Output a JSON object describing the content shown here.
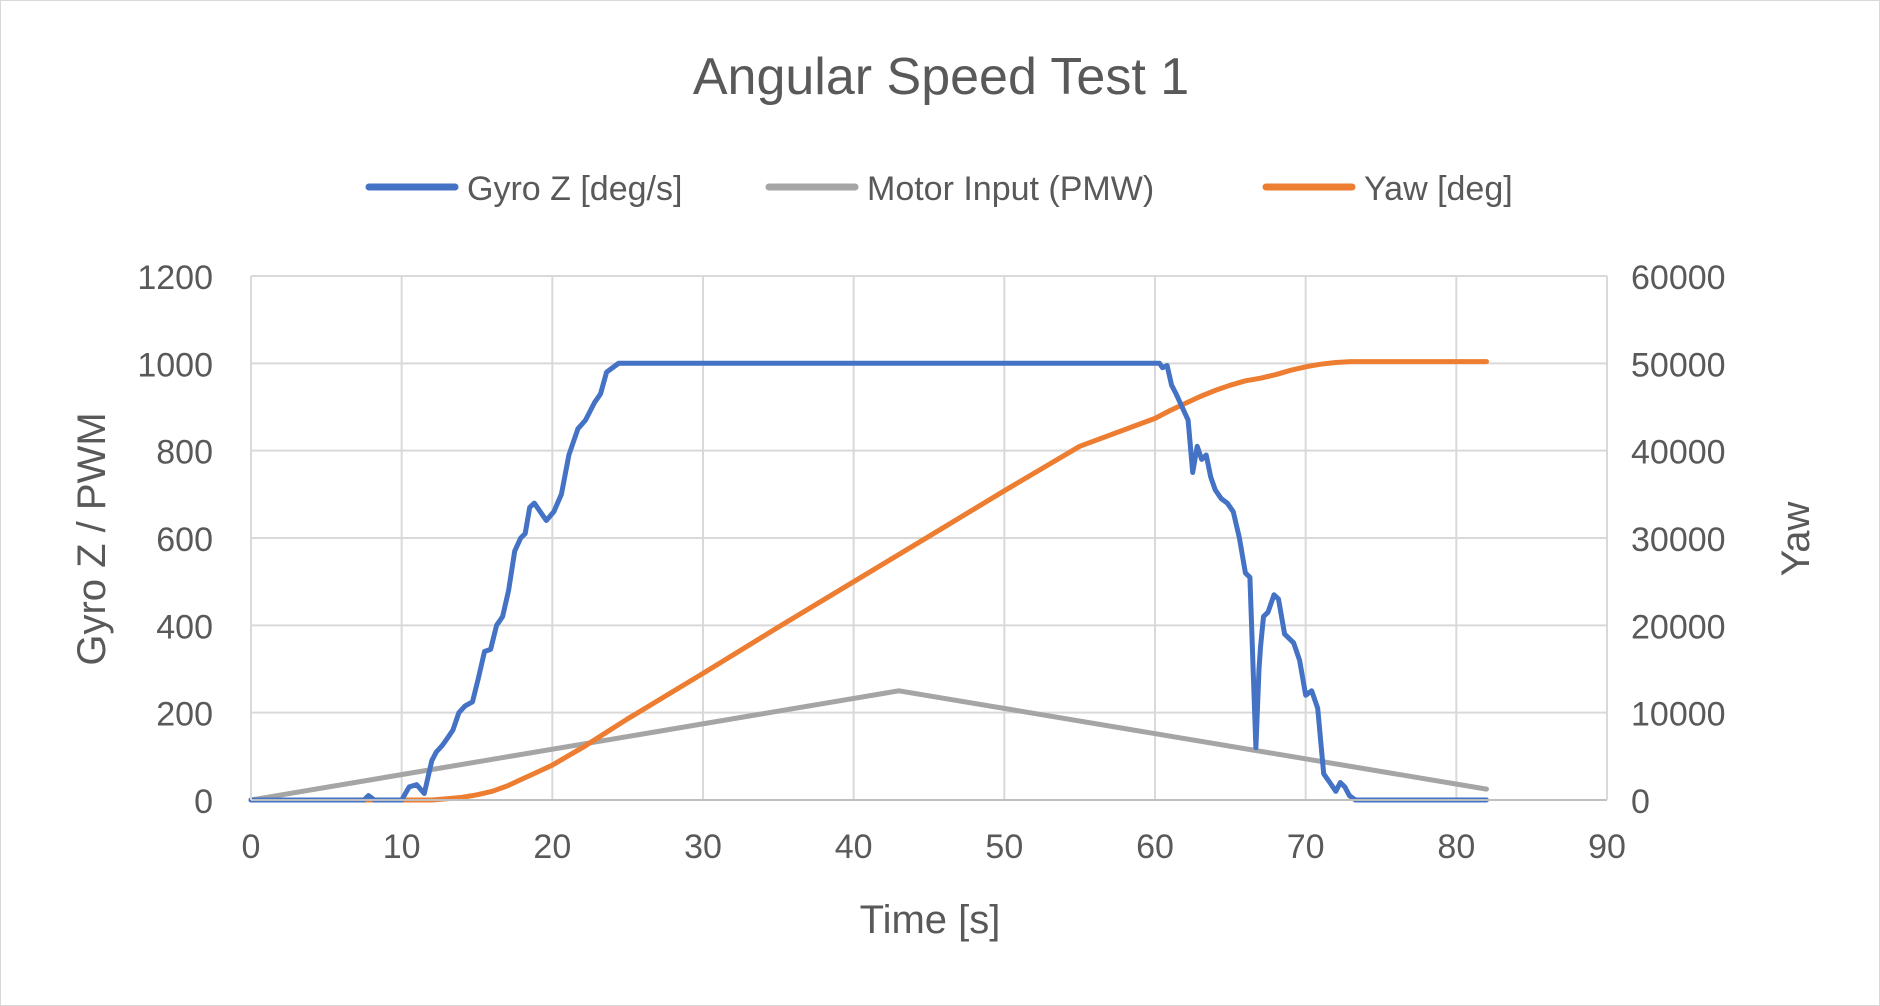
{
  "chart_data": {
    "type": "line",
    "title": "Angular Speed Test 1",
    "xlabel": "Time [s]",
    "ylabel_left": "Gyro Z / PWM",
    "ylabel_right": "Yaw",
    "xlim": [
      0,
      90
    ],
    "ylim_left": [
      0,
      1200
    ],
    "ylim_right": [
      0,
      60000
    ],
    "x_ticks": [
      0,
      10,
      20,
      30,
      40,
      50,
      60,
      70,
      80,
      90
    ],
    "y_ticks_left": [
      0,
      200,
      400,
      600,
      800,
      1000,
      1200
    ],
    "y_ticks_right": [
      0,
      10000,
      20000,
      30000,
      40000,
      50000,
      60000
    ],
    "grid": true,
    "legend_position": "top",
    "series": [
      {
        "name": "Gyro Z [deg/s]",
        "axis": "left",
        "color": "#4472c4",
        "x": [
          0,
          7.5,
          7.8,
          8.2,
          9,
          10,
          10.5,
          11,
          11.5,
          11.8,
          12,
          12.3,
          12.7,
          13,
          13.4,
          13.8,
          14.2,
          14.7,
          15.1,
          15.5,
          15.9,
          16.3,
          16.7,
          17.1,
          17.5,
          17.9,
          18.2,
          18.5,
          18.8,
          19.2,
          19.6,
          20.1,
          20.6,
          21.1,
          21.7,
          22.2,
          22.8,
          23.2,
          23.6,
          24,
          24.4,
          60.3,
          60.5,
          60.8,
          61.1,
          61.4,
          61.8,
          62.2,
          62.5,
          62.8,
          63.1,
          63.4,
          63.7,
          64,
          64.4,
          64.8,
          65.2,
          65.6,
          66,
          66.3,
          66.7,
          66.9,
          67,
          67.2,
          67.5,
          67.9,
          68.2,
          68.6,
          68.9,
          69.2,
          69.6,
          70,
          70.4,
          70.8,
          71.2,
          71.6,
          72.0,
          72.3,
          72.6,
          72.9,
          73.3,
          73.7,
          74.2,
          74.6,
          75,
          82
        ],
        "y": [
          0,
          0,
          10,
          0,
          0,
          0,
          30,
          35,
          15,
          60,
          90,
          110,
          125,
          140,
          160,
          200,
          215,
          225,
          280,
          340,
          345,
          400,
          420,
          480,
          570,
          600,
          610,
          670,
          680,
          660,
          640,
          660,
          700,
          790,
          850,
          870,
          910,
          930,
          980,
          990,
          1000,
          1000,
          990,
          995,
          950,
          930,
          900,
          870,
          750,
          810,
          780,
          790,
          740,
          710,
          690,
          680,
          660,
          600,
          520,
          510,
          120,
          300,
          350,
          420,
          430,
          470,
          460,
          380,
          370,
          360,
          320,
          240,
          250,
          210,
          60,
          40,
          20,
          40,
          30,
          10,
          0,
          0,
          0,
          0,
          0,
          0
        ]
      },
      {
        "name": "Motor Input (PMW)",
        "axis": "left",
        "color": "#a5a5a5",
        "x": [
          0,
          43,
          82
        ],
        "y": [
          0,
          250,
          25
        ]
      },
      {
        "name": "Yaw [deg]",
        "axis": "right",
        "color": "#ed7d31",
        "x": [
          0,
          10,
          12,
          13,
          14,
          15,
          16,
          17,
          18,
          19,
          20,
          21,
          22,
          23,
          24,
          25,
          30,
          35,
          40,
          45,
          50,
          55,
          60,
          61,
          62,
          63,
          64,
          65,
          66,
          67,
          68,
          69,
          70,
          71,
          72,
          73,
          82
        ],
        "y": [
          0,
          0,
          0,
          150,
          300,
          600,
          1000,
          1600,
          2400,
          3200,
          4000,
          5000,
          6000,
          7100,
          8200,
          9300,
          14500,
          19800,
          25000,
          30200,
          35400,
          40500,
          43700,
          44600,
          45400,
          46200,
          46900,
          47500,
          48000,
          48300,
          48700,
          49200,
          49600,
          49900,
          50100,
          50200,
          50200
        ]
      }
    ]
  }
}
